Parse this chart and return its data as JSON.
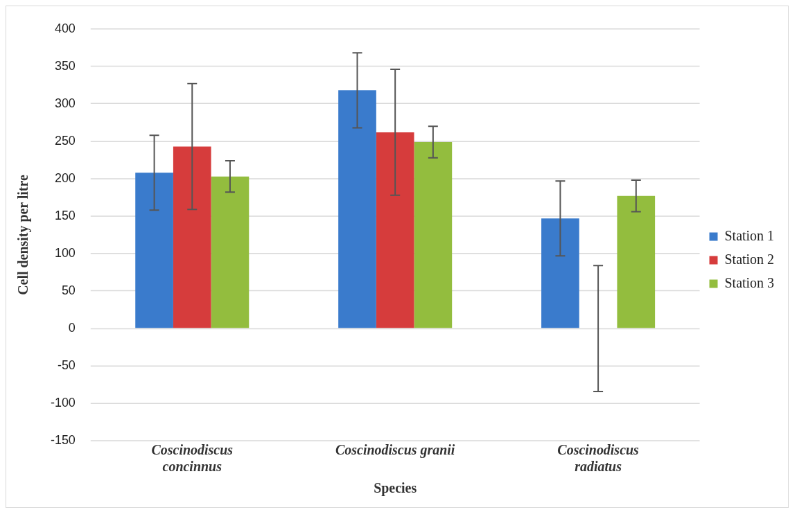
{
  "chart_data": {
    "type": "bar",
    "xlabel": "Species",
    "ylabel": "Cell density per litre",
    "categories": [
      "Coscinodiscus concinnus",
      "Coscinodiscus granii",
      "Coscinodiscus radiatus"
    ],
    "series": [
      {
        "name": "Station 1",
        "color": "#3a7bcc",
        "values": [
          208,
          318,
          147
        ],
        "errors": [
          50,
          50,
          50
        ]
      },
      {
        "name": "Station 2",
        "color": "#d63c3c",
        "values": [
          243,
          262,
          0
        ],
        "errors": [
          84,
          84,
          84
        ]
      },
      {
        "name": "Station 3",
        "color": "#93bd3e",
        "values": [
          203,
          249,
          177
        ],
        "errors": [
          21,
          21,
          21
        ]
      }
    ],
    "ylim": [
      -150,
      400
    ],
    "yticks": [
      -150,
      -100,
      -50,
      0,
      50,
      100,
      150,
      200,
      250,
      300,
      350,
      400
    ],
    "grid": "y",
    "legend": "right"
  }
}
